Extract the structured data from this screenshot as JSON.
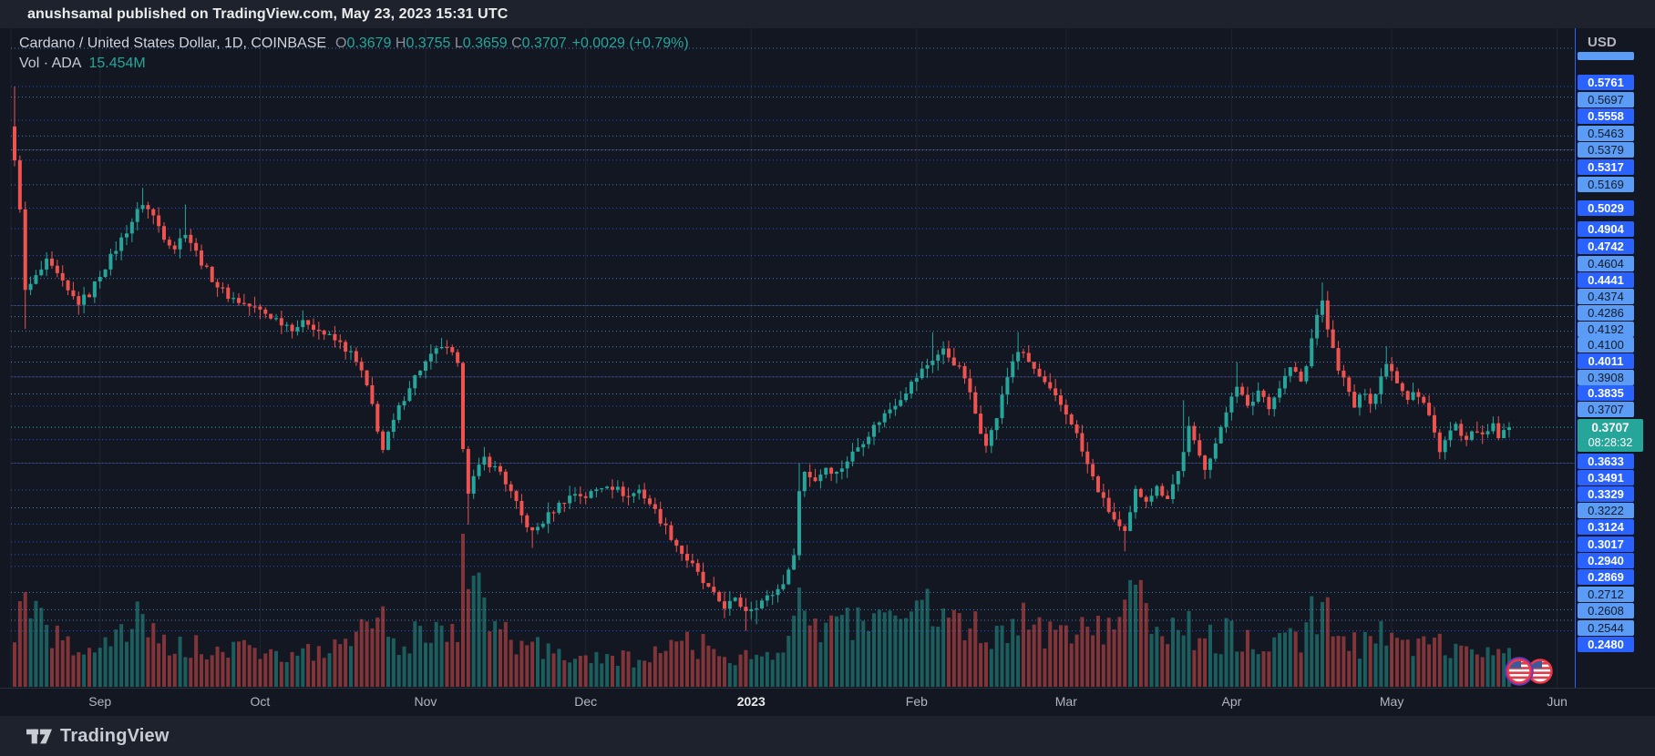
{
  "header": {
    "publish_line": "anushsamal published on TradingView.com, May 23, 2023 15:31 UTC"
  },
  "legend": {
    "symbol_title": "Cardano / United States Dollar, 1D, COINBASE",
    "ohlc": [
      {
        "k": "O",
        "v": "0.3679"
      },
      {
        "k": "H",
        "v": "0.3755"
      },
      {
        "k": "L",
        "v": "0.3659"
      },
      {
        "k": "C",
        "v": "0.3707"
      }
    ],
    "change": "+0.0029 (+0.79%)",
    "vol_label": "Vol · ADA",
    "vol_value": "15.454M"
  },
  "price_axis": {
    "currency": "USD",
    "levels": [
      {
        "price": "0.5761",
        "style": "royal"
      },
      {
        "price": "0.5697",
        "style": "light"
      },
      {
        "price": "0.5558",
        "style": "royal"
      },
      {
        "price": "0.5463",
        "style": "light"
      },
      {
        "price": "0.5379",
        "style": "light"
      },
      {
        "price": "0.5317",
        "style": "royal"
      },
      {
        "price": "0.5169",
        "style": "light"
      },
      {
        "price": "0.5029",
        "style": "royal"
      },
      {
        "price": "0.4904",
        "style": "royal"
      },
      {
        "price": "0.4742",
        "style": "royal"
      },
      {
        "price": "0.4604",
        "style": "light"
      },
      {
        "price": "0.4441",
        "style": "royal"
      },
      {
        "price": "0.4374",
        "style": "light"
      },
      {
        "price": "0.4286",
        "style": "light"
      },
      {
        "price": "0.4192",
        "style": "light"
      },
      {
        "price": "0.4100",
        "style": "light"
      },
      {
        "price": "0.4011",
        "style": "royal"
      },
      {
        "price": "0.3908",
        "style": "light"
      },
      {
        "price": "0.3835",
        "style": "royal"
      },
      {
        "price": "0.3707",
        "style": "light"
      },
      {
        "price": "0.3633",
        "style": "royal"
      },
      {
        "price": "0.3491",
        "style": "royal"
      },
      {
        "price": "0.3329",
        "style": "royal"
      },
      {
        "price": "0.3222",
        "style": "light"
      },
      {
        "price": "0.3124",
        "style": "royal"
      },
      {
        "price": "0.3017",
        "style": "royal"
      },
      {
        "price": "0.2940",
        "style": "royal"
      },
      {
        "price": "0.2869",
        "style": "royal"
      },
      {
        "price": "0.2712",
        "style": "light"
      },
      {
        "price": "0.2608",
        "style": "light"
      },
      {
        "price": "0.2544",
        "style": "light"
      },
      {
        "price": "0.2480",
        "style": "royal"
      }
    ],
    "current": {
      "price": "0.3707",
      "countdown": "08:28:32"
    }
  },
  "time_axis": {
    "months": [
      {
        "label": "Sep",
        "day": 16
      },
      {
        "label": "Oct",
        "day": 46
      },
      {
        "label": "Nov",
        "day": 77
      },
      {
        "label": "Dec",
        "day": 107
      },
      {
        "label": "2023",
        "day": 138,
        "emphasis": true
      },
      {
        "label": "Feb",
        "day": 169
      },
      {
        "label": "Mar",
        "day": 197
      },
      {
        "label": "Apr",
        "day": 228
      },
      {
        "label": "May",
        "day": 258
      },
      {
        "label": "Jun",
        "day": 289
      }
    ]
  },
  "footer": {
    "brand": "TradingView"
  },
  "colors": {
    "up": "#26a69a",
    "down": "#ef5350",
    "level_royal": "#2962ff",
    "level_light": "#5b9cf6",
    "current_line": "#26a69a",
    "background": "#131722",
    "panel": "#1e222d"
  },
  "chart_data": {
    "type": "candlestick",
    "title": "Cardano / United States Dollar",
    "symbol": "ADAUSD",
    "exchange": "COINBASE",
    "interval": "1D",
    "x_start": "2022-08-16",
    "x_end": "2023-05-23",
    "ylabel": "USD",
    "price_range_visible": [
      0.214,
      0.611
    ],
    "grid": "dotted-horizontal-levels",
    "legend_position": "top-left",
    "current_bar": {
      "open": 0.3679,
      "high": 0.3755,
      "low": 0.3659,
      "close": 0.3707,
      "change": 0.0029,
      "change_pct": 0.79,
      "volume": "15.454M",
      "countdown": "08:28:32"
    },
    "levels": [
      0.5761,
      0.5697,
      0.5558,
      0.5463,
      0.5379,
      0.5317,
      0.5169,
      0.5029,
      0.4904,
      0.4742,
      0.4604,
      0.4441,
      0.4374,
      0.4286,
      0.4192,
      0.41,
      0.4011,
      0.3908,
      0.3835,
      0.3707,
      0.3633,
      0.3491,
      0.3329,
      0.3222,
      0.3124,
      0.3017,
      0.294,
      0.2869,
      0.2712,
      0.2608,
      0.2544,
      0.248
    ],
    "gray_lines": [
      0.5379,
      0.4441,
      0.4011,
      0.3491
    ],
    "close_anchors": [
      [
        0,
        0.53
      ],
      [
        1,
        0.504
      ],
      [
        2,
        0.452
      ],
      [
        4,
        0.461
      ],
      [
        6,
        0.47
      ],
      [
        8,
        0.462
      ],
      [
        10,
        0.452
      ],
      [
        12,
        0.446
      ],
      [
        14,
        0.451
      ],
      [
        16,
        0.463
      ],
      [
        18,
        0.473
      ],
      [
        20,
        0.484
      ],
      [
        22,
        0.495
      ],
      [
        24,
        0.506
      ],
      [
        26,
        0.498
      ],
      [
        28,
        0.486
      ],
      [
        30,
        0.479
      ],
      [
        32,
        0.489
      ],
      [
        34,
        0.476
      ],
      [
        36,
        0.465
      ],
      [
        38,
        0.456
      ],
      [
        40,
        0.45
      ],
      [
        43,
        0.445
      ],
      [
        46,
        0.441
      ],
      [
        49,
        0.436
      ],
      [
        52,
        0.431
      ],
      [
        55,
        0.434
      ],
      [
        58,
        0.427
      ],
      [
        61,
        0.421
      ],
      [
        63,
        0.415
      ],
      [
        65,
        0.404
      ],
      [
        67,
        0.384
      ],
      [
        68,
        0.37
      ],
      [
        69,
        0.357
      ],
      [
        70,
        0.366
      ],
      [
        72,
        0.382
      ],
      [
        74,
        0.396
      ],
      [
        76,
        0.406
      ],
      [
        78,
        0.413
      ],
      [
        80,
        0.42
      ],
      [
        82,
        0.414
      ],
      [
        83,
        0.407
      ],
      [
        84,
        0.36
      ],
      [
        85,
        0.333
      ],
      [
        86,
        0.34
      ],
      [
        88,
        0.352
      ],
      [
        90,
        0.346
      ],
      [
        91,
        0.344
      ],
      [
        93,
        0.331
      ],
      [
        95,
        0.317
      ],
      [
        97,
        0.307
      ],
      [
        99,
        0.314
      ],
      [
        101,
        0.321
      ],
      [
        103,
        0.327
      ],
      [
        105,
        0.331
      ],
      [
        107,
        0.329
      ],
      [
        109,
        0.333
      ],
      [
        111,
        0.337
      ],
      [
        113,
        0.333
      ],
      [
        115,
        0.329
      ],
      [
        117,
        0.333
      ],
      [
        119,
        0.325
      ],
      [
        121,
        0.315
      ],
      [
        123,
        0.305
      ],
      [
        125,
        0.295
      ],
      [
        127,
        0.287
      ],
      [
        129,
        0.277
      ],
      [
        131,
        0.269
      ],
      [
        133,
        0.263
      ],
      [
        135,
        0.266
      ],
      [
        137,
        0.261
      ],
      [
        139,
        0.264
      ],
      [
        141,
        0.268
      ],
      [
        143,
        0.273
      ],
      [
        145,
        0.283
      ],
      [
        146,
        0.296
      ],
      [
        147,
        0.332
      ],
      [
        148,
        0.344
      ],
      [
        150,
        0.339
      ],
      [
        152,
        0.347
      ],
      [
        154,
        0.343
      ],
      [
        156,
        0.351
      ],
      [
        158,
        0.359
      ],
      [
        160,
        0.367
      ],
      [
        162,
        0.375
      ],
      [
        164,
        0.382
      ],
      [
        166,
        0.389
      ],
      [
        168,
        0.397
      ],
      [
        170,
        0.405
      ],
      [
        172,
        0.412
      ],
      [
        174,
        0.417
      ],
      [
        176,
        0.41
      ],
      [
        178,
        0.401
      ],
      [
        180,
        0.379
      ],
      [
        181,
        0.369
      ],
      [
        182,
        0.362
      ],
      [
        183,
        0.368
      ],
      [
        184,
        0.377
      ],
      [
        185,
        0.389
      ],
      [
        186,
        0.401
      ],
      [
        187,
        0.411
      ],
      [
        188,
        0.417
      ],
      [
        190,
        0.41
      ],
      [
        192,
        0.401
      ],
      [
        194,
        0.392
      ],
      [
        196,
        0.384
      ],
      [
        198,
        0.374
      ],
      [
        199,
        0.366
      ],
      [
        200,
        0.356
      ],
      [
        202,
        0.34
      ],
      [
        204,
        0.326
      ],
      [
        206,
        0.315
      ],
      [
        207,
        0.31
      ],
      [
        208,
        0.306
      ],
      [
        209,
        0.318
      ],
      [
        210,
        0.332
      ],
      [
        212,
        0.328
      ],
      [
        214,
        0.334
      ],
      [
        216,
        0.329
      ],
      [
        218,
        0.344
      ],
      [
        219,
        0.357
      ],
      [
        220,
        0.37
      ],
      [
        221,
        0.361
      ],
      [
        222,
        0.353
      ],
      [
        223,
        0.347
      ],
      [
        224,
        0.354
      ],
      [
        225,
        0.361
      ],
      [
        226,
        0.369
      ],
      [
        227,
        0.38
      ],
      [
        228,
        0.391
      ],
      [
        229,
        0.397
      ],
      [
        230,
        0.389
      ],
      [
        231,
        0.382
      ],
      [
        232,
        0.387
      ],
      [
        233,
        0.393
      ],
      [
        234,
        0.389
      ],
      [
        235,
        0.384
      ],
      [
        236,
        0.389
      ],
      [
        237,
        0.395
      ],
      [
        238,
        0.401
      ],
      [
        239,
        0.407
      ],
      [
        240,
        0.403
      ],
      [
        241,
        0.398
      ],
      [
        242,
        0.407
      ],
      [
        243,
        0.424
      ],
      [
        244,
        0.44
      ],
      [
        245,
        0.445
      ],
      [
        246,
        0.431
      ],
      [
        247,
        0.417
      ],
      [
        248,
        0.407
      ],
      [
        249,
        0.399
      ],
      [
        250,
        0.391
      ],
      [
        251,
        0.383
      ],
      [
        252,
        0.388
      ],
      [
        253,
        0.393
      ],
      [
        254,
        0.387
      ],
      [
        255,
        0.391
      ],
      [
        256,
        0.401
      ],
      [
        257,
        0.411
      ],
      [
        258,
        0.405
      ],
      [
        259,
        0.399
      ],
      [
        260,
        0.394
      ],
      [
        261,
        0.389
      ],
      [
        262,
        0.393
      ],
      [
        263,
        0.389
      ],
      [
        264,
        0.385
      ],
      [
        265,
        0.377
      ],
      [
        266,
        0.367
      ],
      [
        267,
        0.358
      ],
      [
        268,
        0.363
      ],
      [
        269,
        0.368
      ],
      [
        270,
        0.372
      ],
      [
        271,
        0.365
      ],
      [
        272,
        0.361
      ],
      [
        273,
        0.366
      ],
      [
        274,
        0.37
      ],
      [
        275,
        0.364
      ],
      [
        276,
        0.368
      ],
      [
        277,
        0.371
      ],
      [
        278,
        0.365
      ],
      [
        279,
        0.367
      ],
      [
        280,
        0.3707
      ]
    ],
    "wick_highs": {
      "0": 0.5761,
      "24": 0.515,
      "32": 0.505,
      "147": 0.349,
      "172": 0.428,
      "188": 0.428,
      "219": 0.387,
      "229": 0.41,
      "245": 0.458,
      "257": 0.4195
    },
    "wick_lows": {
      "2": 0.43,
      "85": 0.312,
      "97": 0.298,
      "137": 0.248,
      "139": 0.252,
      "208": 0.296,
      "267": 0.355
    },
    "volume_anchors": [
      [
        0,
        60
      ],
      [
        2,
        95
      ],
      [
        4,
        70
      ],
      [
        7,
        55
      ],
      [
        10,
        45
      ],
      [
        13,
        40
      ],
      [
        16,
        50
      ],
      [
        20,
        55
      ],
      [
        24,
        75
      ],
      [
        28,
        50
      ],
      [
        32,
        45
      ],
      [
        36,
        40
      ],
      [
        40,
        38
      ],
      [
        44,
        42
      ],
      [
        48,
        36
      ],
      [
        52,
        34
      ],
      [
        56,
        38
      ],
      [
        60,
        42
      ],
      [
        64,
        50
      ],
      [
        66,
        70
      ],
      [
        68,
        95
      ],
      [
        70,
        60
      ],
      [
        73,
        50
      ],
      [
        76,
        55
      ],
      [
        80,
        62
      ],
      [
        83,
        70
      ],
      [
        84,
        165
      ],
      [
        85,
        150
      ],
      [
        86,
        115
      ],
      [
        88,
        75
      ],
      [
        90,
        60
      ],
      [
        93,
        50
      ],
      [
        96,
        44
      ],
      [
        99,
        40
      ],
      [
        102,
        36
      ],
      [
        105,
        32
      ],
      [
        108,
        30
      ],
      [
        111,
        36
      ],
      [
        114,
        30
      ],
      [
        117,
        28
      ],
      [
        120,
        34
      ],
      [
        123,
        45
      ],
      [
        126,
        50
      ],
      [
        129,
        45
      ],
      [
        132,
        38
      ],
      [
        135,
        32
      ],
      [
        138,
        36
      ],
      [
        141,
        32
      ],
      [
        144,
        36
      ],
      [
        146,
        60
      ],
      [
        147,
        110
      ],
      [
        148,
        90
      ],
      [
        150,
        70
      ],
      [
        153,
        65
      ],
      [
        156,
        70
      ],
      [
        159,
        75
      ],
      [
        162,
        80
      ],
      [
        165,
        70
      ],
      [
        168,
        75
      ],
      [
        171,
        85
      ],
      [
        174,
        80
      ],
      [
        177,
        60
      ],
      [
        180,
        70
      ],
      [
        183,
        55
      ],
      [
        186,
        70
      ],
      [
        188,
        75
      ],
      [
        191,
        60
      ],
      [
        194,
        55
      ],
      [
        197,
        52
      ],
      [
        200,
        60
      ],
      [
        203,
        65
      ],
      [
        206,
        70
      ],
      [
        208,
        130
      ],
      [
        209,
        120
      ],
      [
        211,
        90
      ],
      [
        214,
        70
      ],
      [
        217,
        65
      ],
      [
        219,
        75
      ],
      [
        222,
        55
      ],
      [
        225,
        50
      ],
      [
        228,
        60
      ],
      [
        231,
        50
      ],
      [
        234,
        45
      ],
      [
        237,
        50
      ],
      [
        240,
        48
      ],
      [
        243,
        75
      ],
      [
        245,
        85
      ],
      [
        247,
        65
      ],
      [
        250,
        52
      ],
      [
        253,
        45
      ],
      [
        256,
        55
      ],
      [
        258,
        48
      ],
      [
        261,
        42
      ],
      [
        264,
        46
      ],
      [
        266,
        58
      ],
      [
        268,
        45
      ],
      [
        271,
        38
      ],
      [
        274,
        36
      ],
      [
        277,
        34
      ],
      [
        280,
        38
      ]
    ],
    "event_markers": {
      "description": "US economic event flags",
      "count": 2,
      "position": "latest-bars-bottom"
    }
  }
}
